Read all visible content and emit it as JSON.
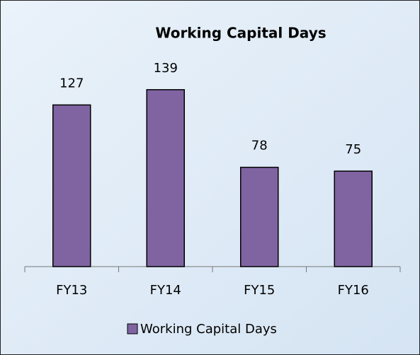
{
  "chart_data": {
    "type": "bar",
    "title": "Working Capital Days",
    "categories": [
      "FY13",
      "FY14",
      "FY15",
      "FY16"
    ],
    "series": [
      {
        "name": "Working Capital Days",
        "color": "#8064a2",
        "values": [
          127,
          139,
          78,
          75
        ]
      }
    ],
    "ylim": [
      0,
      160
    ],
    "legend": "bottom",
    "data_labels": true
  }
}
